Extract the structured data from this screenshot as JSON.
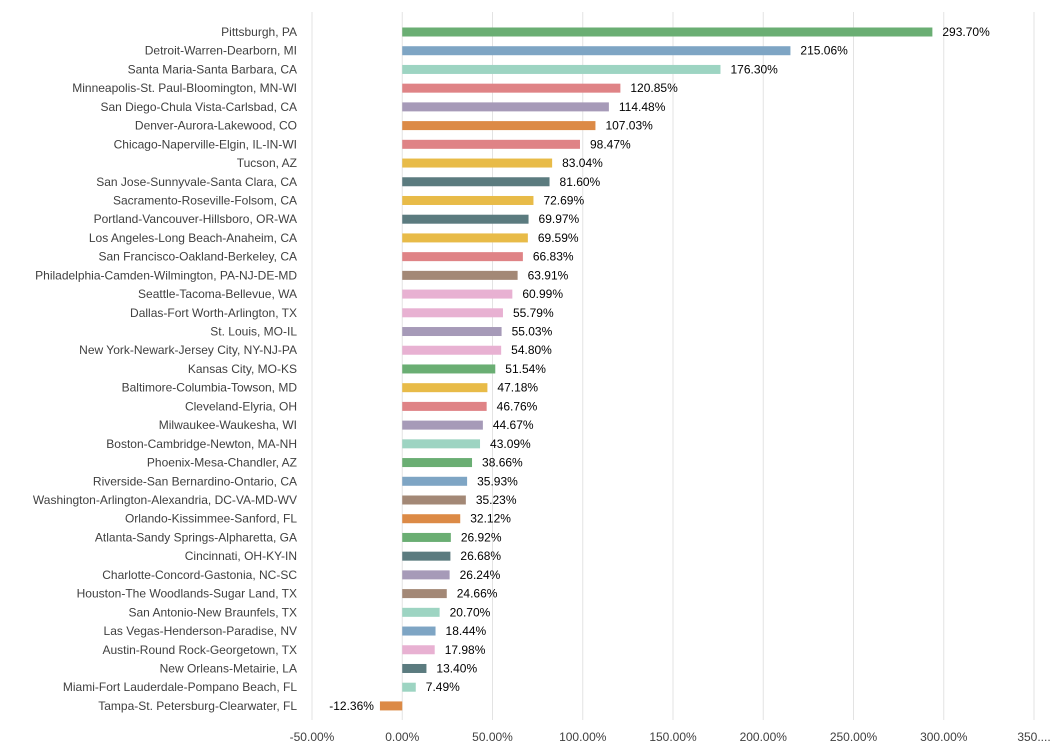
{
  "chart_data": {
    "type": "bar",
    "orientation": "horizontal",
    "title": "",
    "xlabel": "",
    "ylabel": "",
    "xlim": [
      -50,
      350
    ],
    "grid": true,
    "value_suffix": "%",
    "tick_labels": [
      "-50.00%",
      "0.00%",
      "50.00%",
      "100.00%",
      "150.00%",
      "200.00%",
      "250.00%",
      "300.00%",
      "350...."
    ],
    "ticks": [
      -50,
      0,
      50,
      100,
      150,
      200,
      250,
      300,
      350
    ],
    "categories": [
      "Pittsburgh, PA",
      "Detroit-Warren-Dearborn, MI",
      "Santa Maria-Santa Barbara, CA",
      "Minneapolis-St. Paul-Bloomington, MN-WI",
      "San Diego-Chula Vista-Carlsbad, CA",
      "Denver-Aurora-Lakewood, CO",
      "Chicago-Naperville-Elgin, IL-IN-WI",
      "Tucson, AZ",
      "San Jose-Sunnyvale-Santa Clara, CA",
      "Sacramento-Roseville-Folsom, CA",
      "Portland-Vancouver-Hillsboro, OR-WA",
      "Los Angeles-Long Beach-Anaheim, CA",
      "San Francisco-Oakland-Berkeley, CA",
      "Philadelphia-Camden-Wilmington, PA-NJ-DE-MD",
      "Seattle-Tacoma-Bellevue, WA",
      "Dallas-Fort Worth-Arlington, TX",
      "St. Louis, MO-IL",
      "New York-Newark-Jersey City, NY-NJ-PA",
      "Kansas City, MO-KS",
      "Baltimore-Columbia-Towson, MD",
      "Cleveland-Elyria, OH",
      "Milwaukee-Waukesha, WI",
      "Boston-Cambridge-Newton, MA-NH",
      "Phoenix-Mesa-Chandler, AZ",
      "Riverside-San Bernardino-Ontario, CA",
      "Washington-Arlington-Alexandria, DC-VA-MD-WV",
      "Orlando-Kissimmee-Sanford, FL",
      "Atlanta-Sandy Springs-Alpharetta, GA",
      "Cincinnati, OH-KY-IN",
      "Charlotte-Concord-Gastonia, NC-SC",
      "Houston-The Woodlands-Sugar Land, TX",
      "San Antonio-New Braunfels, TX",
      "Las Vegas-Henderson-Paradise, NV",
      "Austin-Round Rock-Georgetown, TX",
      "New Orleans-Metairie, LA",
      "Miami-Fort Lauderdale-Pompano Beach, FL",
      "Tampa-St. Petersburg-Clearwater, FL"
    ],
    "values": [
      293.7,
      215.06,
      176.3,
      120.85,
      114.48,
      107.03,
      98.47,
      83.04,
      81.6,
      72.69,
      69.97,
      69.59,
      66.83,
      63.91,
      60.99,
      55.79,
      55.03,
      54.8,
      51.54,
      47.18,
      46.76,
      44.67,
      43.09,
      38.66,
      35.93,
      35.23,
      32.12,
      26.92,
      26.68,
      26.24,
      24.66,
      20.7,
      18.44,
      17.98,
      13.4,
      7.49,
      -12.36
    ],
    "value_labels": [
      "293.70%",
      "215.06%",
      "176.30%",
      "120.85%",
      "114.48%",
      "107.03%",
      "98.47%",
      "83.04%",
      "81.60%",
      "72.69%",
      "69.97%",
      "69.59%",
      "66.83%",
      "63.91%",
      "60.99%",
      "55.79%",
      "55.03%",
      "54.80%",
      "51.54%",
      "47.18%",
      "46.76%",
      "44.67%",
      "43.09%",
      "38.66%",
      "35.93%",
      "35.23%",
      "32.12%",
      "26.92%",
      "26.68%",
      "26.24%",
      "24.66%",
      "20.70%",
      "18.44%",
      "17.98%",
      "13.40%",
      "7.49%",
      "-12.36%"
    ],
    "colors": [
      "#6aae73",
      "#7ea5c4",
      "#9dd4c2",
      "#df8386",
      "#a69ab8",
      "#dc8a46",
      "#df8386",
      "#e8bb48",
      "#5b7b7f",
      "#e8bb48",
      "#5b7b7f",
      "#e8bb48",
      "#df8386",
      "#a38876",
      "#e8b1d2",
      "#e8b1d2",
      "#a69ab8",
      "#e8b1d2",
      "#6aae73",
      "#e8bb48",
      "#df8386",
      "#a69ab8",
      "#9dd4c2",
      "#6aae73",
      "#7ea5c4",
      "#a38876",
      "#dc8a46",
      "#6aae73",
      "#5b7b7f",
      "#a69ab8",
      "#a38876",
      "#9dd4c2",
      "#7ea5c4",
      "#e8b1d2",
      "#5b7b7f",
      "#9dd4c2",
      "#dc8a46"
    ]
  }
}
